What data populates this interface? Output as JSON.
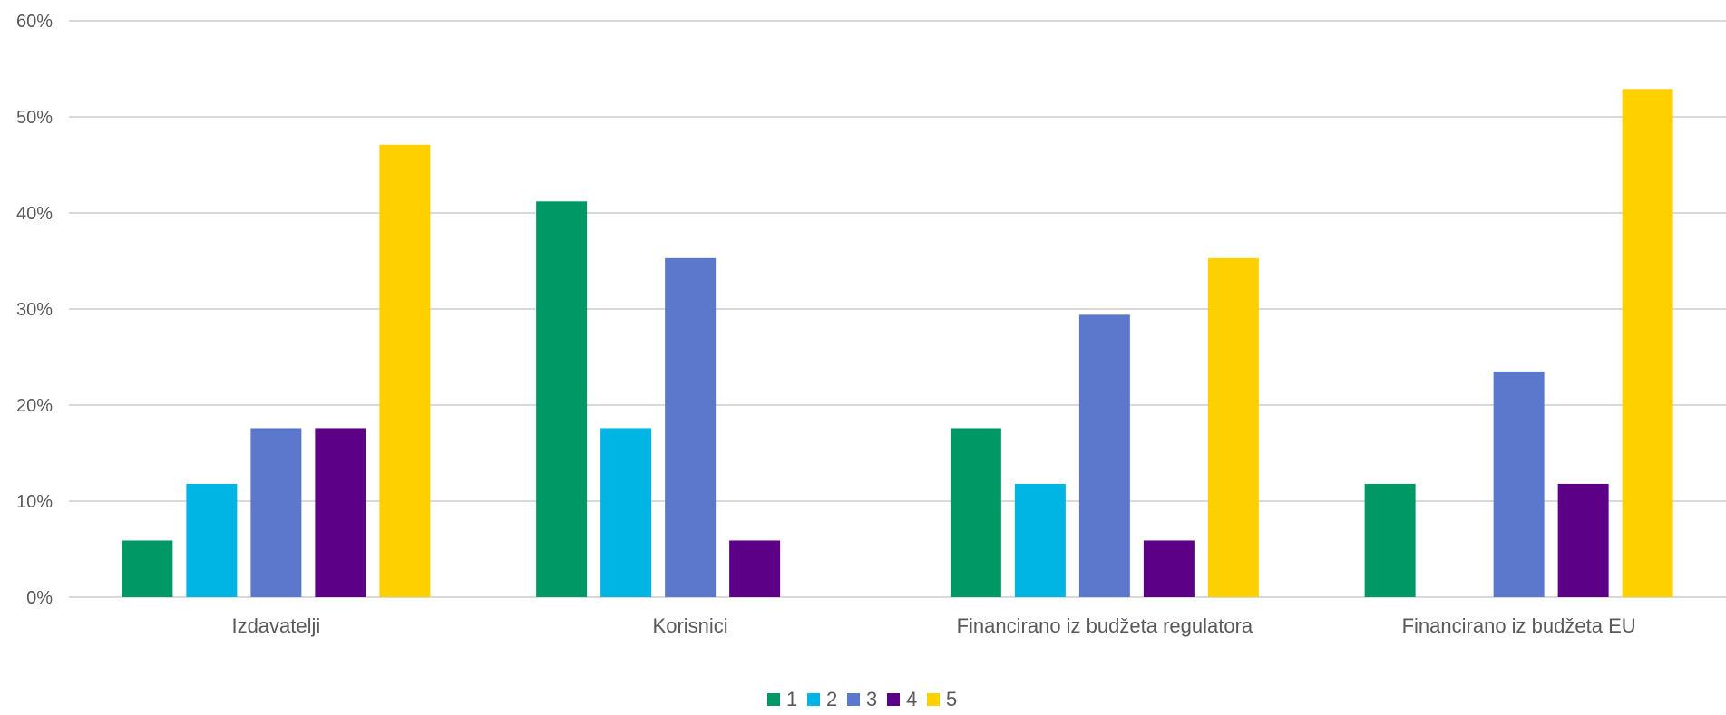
{
  "chart_data": {
    "type": "bar",
    "categories": [
      "Izdavatelji",
      "Korisnici",
      "Financirano iz budžeta regulatora",
      "Financirano iz budžeta EU"
    ],
    "series": [
      {
        "name": "1",
        "color": "#009966",
        "values": [
          5.9,
          41.2,
          17.6,
          11.8
        ]
      },
      {
        "name": "2",
        "color": "#00b4e4",
        "values": [
          11.8,
          17.6,
          11.8,
          0
        ]
      },
      {
        "name": "3",
        "color": "#5b78cc",
        "values": [
          17.6,
          35.3,
          29.4,
          23.5
        ]
      },
      {
        "name": "4",
        "color": "#5c0087",
        "values": [
          17.6,
          5.9,
          5.9,
          11.8
        ]
      },
      {
        "name": "5",
        "color": "#ffd000",
        "values": [
          47.1,
          0,
          35.3,
          52.9
        ]
      }
    ],
    "y_ticks": [
      0,
      10,
      20,
      30,
      40,
      50,
      60
    ],
    "y_tick_suffix": "%",
    "ylim": [
      0,
      60
    ],
    "grid": true,
    "legend_position": "bottom-center",
    "title": "",
    "xlabel": "",
    "ylabel": ""
  }
}
